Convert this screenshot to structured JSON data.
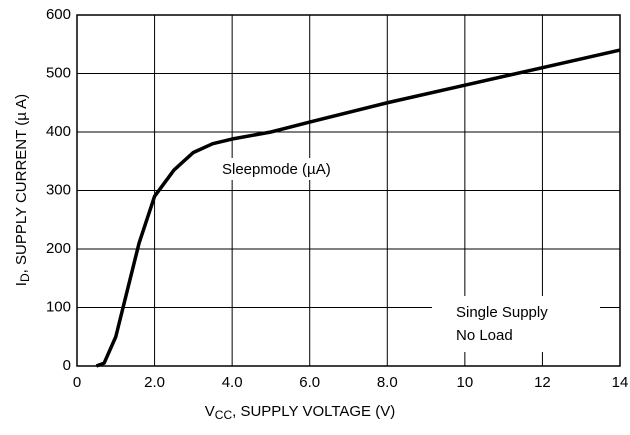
{
  "chart_data": {
    "type": "line",
    "xlabel": {
      "main": "V",
      "sub": "CC",
      "rest": ", SUPPLY VOLTAGE (V)"
    },
    "ylabel": {
      "main": "I",
      "sub": "D",
      "rest": ", SUPPLY CURRENT (µ A)"
    },
    "annotations": [
      "Single Supply",
      "No Load"
    ],
    "x": [
      0.5,
      0.7,
      1.0,
      1.3,
      1.6,
      2.0,
      2.5,
      3.0,
      3.5,
      4.0,
      5.0,
      6.0,
      8.0,
      10.0,
      12.0,
      14.0
    ],
    "series": [
      {
        "name": "Sleepmode (µA)",
        "color": "#000000",
        "values": [
          0,
          5,
          50,
          130,
          210,
          290,
          335,
          365,
          380,
          388,
          400,
          417,
          450,
          480,
          510,
          540
        ]
      }
    ],
    "xlim": [
      0,
      14
    ],
    "xticks": [
      0,
      {
        "value": 2,
        "label": "2.0"
      },
      {
        "value": 4,
        "label": "4.0"
      },
      {
        "value": 6,
        "label": "6.0"
      },
      {
        "value": 8,
        "label": "8.0"
      },
      10,
      12,
      14
    ],
    "ylim": [
      0,
      600
    ],
    "yticks": [
      0,
      100,
      200,
      300,
      400,
      500,
      600
    ],
    "grid": true
  }
}
